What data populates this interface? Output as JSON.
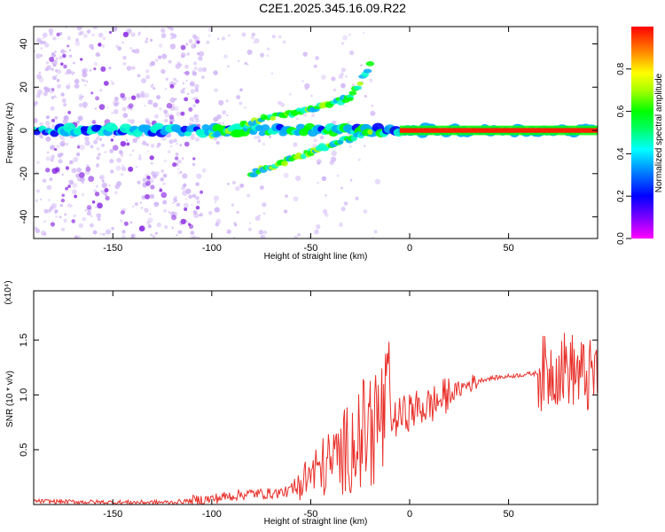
{
  "title": "C2E1.2025.345.16.09.R22",
  "colors": {
    "trace": "#e8302a",
    "colormap": [
      "#ff00ff",
      "#5500ff",
      "#0000ff",
      "#00aaff",
      "#00ffcc",
      "#00ff00",
      "#aaff00",
      "#ffff00",
      "#ffaa00",
      "#ff0000"
    ],
    "background_dots": "#cdb0f5"
  },
  "chart_data": [
    {
      "type": "heatmap",
      "title": "C2E1.2025.345.16.09.R22",
      "xlabel": "Height of straight line (km)",
      "ylabel": "Frequency (Hz)",
      "xlim": [
        -190,
        95
      ],
      "ylim": [
        -50,
        48
      ],
      "xticks": [
        -150,
        -100,
        -50,
        0,
        50
      ],
      "yticks": [
        -40,
        -20,
        0,
        20,
        40
      ],
      "colorbar": {
        "label": "Normalized spectral amplitude",
        "range": [
          0,
          1
        ],
        "ticks": [
          "0.0",
          "0.2",
          "0.4",
          "0.6",
          "0.8"
        ]
      },
      "features": [
        {
          "name": "main band",
          "x_range": [
            -190,
            95
          ],
          "freq": 0,
          "amplitude": 0.4
        },
        {
          "name": "saturated band",
          "x_range": [
            -5,
            95
          ],
          "freq": 0,
          "amplitude": 0.95
        },
        {
          "name": "upper branch",
          "points": [
            [
              -100,
              -2
            ],
            [
              -75,
              5
            ],
            [
              -50,
              10
            ],
            [
              -30,
              15
            ],
            [
              -20,
              30
            ]
          ]
        },
        {
          "name": "lower branch",
          "points": [
            [
              -80,
              -20
            ],
            [
              -50,
              -10
            ],
            [
              -35,
              -5
            ],
            [
              -20,
              -1
            ]
          ]
        }
      ]
    },
    {
      "type": "line",
      "xlabel": "Height of straight line (km)",
      "ylabel": "SNR (10 * v/v)",
      "scale_label": "(x10⁴)",
      "xlim": [
        -190,
        95
      ],
      "ylim": [
        0,
        1.95
      ],
      "xticks": [
        -150,
        -100,
        -50,
        0,
        50
      ],
      "yticks": [
        "0.5",
        "1.0",
        "1.5"
      ],
      "ytick_values": [
        0.5,
        1.0,
        1.5
      ],
      "series": [
        {
          "name": "SNR",
          "x": [
            -190,
            -150,
            -120,
            -100,
            -90,
            -80,
            -70,
            -60,
            -50,
            -45,
            -40,
            -35,
            -30,
            -25,
            -20,
            -15,
            -10,
            -5,
            0,
            5,
            10,
            15,
            20,
            25,
            30,
            35,
            40,
            45,
            50,
            55,
            60,
            65,
            70,
            75,
            80,
            85,
            90,
            95
          ],
          "values": [
            0.03,
            0.02,
            0.02,
            0.05,
            0.08,
            0.1,
            0.1,
            0.12,
            0.25,
            0.3,
            0.35,
            0.4,
            0.5,
            0.55,
            0.65,
            0.7,
            0.75,
            0.8,
            0.85,
            0.88,
            0.9,
            0.95,
            1.0,
            1.05,
            1.1,
            1.13,
            1.15,
            1.16,
            1.17,
            1.18,
            1.19,
            1.2,
            1.2,
            1.25,
            1.25,
            1.2,
            1.15,
            1.2
          ]
        }
      ]
    }
  ]
}
